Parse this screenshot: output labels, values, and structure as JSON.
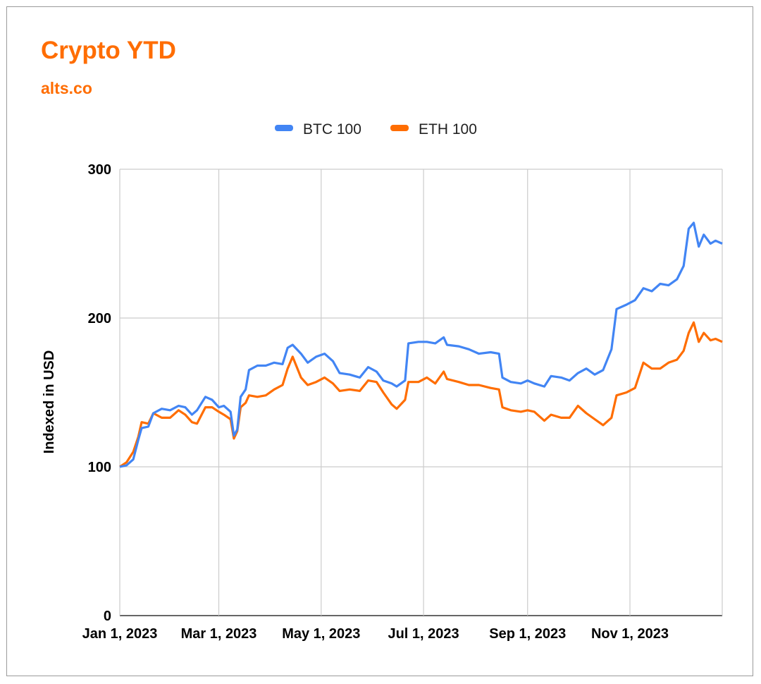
{
  "chart_data": {
    "type": "line",
    "title": "Crypto YTD",
    "subtitle": "alts.co",
    "xlabel": "",
    "ylabel": "Indexed in USD",
    "ylim": [
      0,
      300
    ],
    "yticks": [
      0,
      100,
      200,
      300
    ],
    "xlim": [
      "2023-01-01",
      "2023-12-26"
    ],
    "xticks": [
      {
        "date": "2023-01-01",
        "label": "Jan 1, 2023"
      },
      {
        "date": "2023-03-01",
        "label": "Mar 1, 2023"
      },
      {
        "date": "2023-05-01",
        "label": "May 1, 2023"
      },
      {
        "date": "2023-07-01",
        "label": "Jul 1, 2023"
      },
      {
        "date": "2023-09-01",
        "label": "Sep 1, 2023"
      },
      {
        "date": "2023-11-01",
        "label": "Nov 1, 2023"
      }
    ],
    "grid": true,
    "legend_position": "top",
    "series": [
      {
        "name": "BTC 100",
        "color": "#4285f4",
        "points": [
          [
            "2023-01-01",
            100
          ],
          [
            "2023-01-05",
            101
          ],
          [
            "2023-01-09",
            105
          ],
          [
            "2023-01-12",
            118
          ],
          [
            "2023-01-14",
            126
          ],
          [
            "2023-01-18",
            127
          ],
          [
            "2023-01-21",
            136
          ],
          [
            "2023-01-26",
            139
          ],
          [
            "2023-01-31",
            138
          ],
          [
            "2023-02-05",
            141
          ],
          [
            "2023-02-09",
            140
          ],
          [
            "2023-02-13",
            135
          ],
          [
            "2023-02-16",
            138
          ],
          [
            "2023-02-21",
            147
          ],
          [
            "2023-02-25",
            145
          ],
          [
            "2023-03-01",
            140
          ],
          [
            "2023-03-04",
            141
          ],
          [
            "2023-03-08",
            137
          ],
          [
            "2023-03-10",
            121
          ],
          [
            "2023-03-12",
            125
          ],
          [
            "2023-03-14",
            147
          ],
          [
            "2023-03-17",
            152
          ],
          [
            "2023-03-19",
            165
          ],
          [
            "2023-03-24",
            168
          ],
          [
            "2023-03-29",
            168
          ],
          [
            "2023-04-03",
            170
          ],
          [
            "2023-04-08",
            169
          ],
          [
            "2023-04-11",
            180
          ],
          [
            "2023-04-14",
            182
          ],
          [
            "2023-04-19",
            176
          ],
          [
            "2023-04-23",
            170
          ],
          [
            "2023-04-28",
            174
          ],
          [
            "2023-05-03",
            176
          ],
          [
            "2023-05-08",
            171
          ],
          [
            "2023-05-12",
            163
          ],
          [
            "2023-05-18",
            162
          ],
          [
            "2023-05-24",
            160
          ],
          [
            "2023-05-29",
            167
          ],
          [
            "2023-06-03",
            164
          ],
          [
            "2023-06-07",
            158
          ],
          [
            "2023-06-12",
            156
          ],
          [
            "2023-06-15",
            154
          ],
          [
            "2023-06-20",
            158
          ],
          [
            "2023-06-22",
            183
          ],
          [
            "2023-06-28",
            184
          ],
          [
            "2023-07-03",
            184
          ],
          [
            "2023-07-08",
            183
          ],
          [
            "2023-07-13",
            187
          ],
          [
            "2023-07-15",
            182
          ],
          [
            "2023-07-22",
            181
          ],
          [
            "2023-07-28",
            179
          ],
          [
            "2023-08-03",
            176
          ],
          [
            "2023-08-10",
            177
          ],
          [
            "2023-08-15",
            176
          ],
          [
            "2023-08-17",
            160
          ],
          [
            "2023-08-22",
            157
          ],
          [
            "2023-08-28",
            156
          ],
          [
            "2023-09-01",
            158
          ],
          [
            "2023-09-05",
            156
          ],
          [
            "2023-09-11",
            154
          ],
          [
            "2023-09-15",
            161
          ],
          [
            "2023-09-21",
            160
          ],
          [
            "2023-09-26",
            158
          ],
          [
            "2023-10-01",
            163
          ],
          [
            "2023-10-06",
            166
          ],
          [
            "2023-10-11",
            162
          ],
          [
            "2023-10-16",
            165
          ],
          [
            "2023-10-21",
            179
          ],
          [
            "2023-10-24",
            206
          ],
          [
            "2023-10-30",
            209
          ],
          [
            "2023-11-04",
            212
          ],
          [
            "2023-11-09",
            220
          ],
          [
            "2023-11-14",
            218
          ],
          [
            "2023-11-19",
            223
          ],
          [
            "2023-11-24",
            222
          ],
          [
            "2023-11-29",
            226
          ],
          [
            "2023-12-03",
            235
          ],
          [
            "2023-12-06",
            260
          ],
          [
            "2023-12-09",
            264
          ],
          [
            "2023-12-12",
            248
          ],
          [
            "2023-12-15",
            256
          ],
          [
            "2023-12-19",
            250
          ],
          [
            "2023-12-22",
            252
          ],
          [
            "2023-12-26",
            250
          ]
        ]
      },
      {
        "name": "ETH 100",
        "color": "#ff6d01",
        "points": [
          [
            "2023-01-01",
            100
          ],
          [
            "2023-01-05",
            103
          ],
          [
            "2023-01-09",
            110
          ],
          [
            "2023-01-12",
            120
          ],
          [
            "2023-01-14",
            130
          ],
          [
            "2023-01-18",
            129
          ],
          [
            "2023-01-21",
            136
          ],
          [
            "2023-01-26",
            133
          ],
          [
            "2023-01-31",
            133
          ],
          [
            "2023-02-05",
            138
          ],
          [
            "2023-02-09",
            135
          ],
          [
            "2023-02-13",
            130
          ],
          [
            "2023-02-16",
            129
          ],
          [
            "2023-02-21",
            140
          ],
          [
            "2023-02-25",
            140
          ],
          [
            "2023-03-01",
            137
          ],
          [
            "2023-03-04",
            135
          ],
          [
            "2023-03-08",
            132
          ],
          [
            "2023-03-10",
            119
          ],
          [
            "2023-03-12",
            124
          ],
          [
            "2023-03-14",
            140
          ],
          [
            "2023-03-17",
            143
          ],
          [
            "2023-03-19",
            148
          ],
          [
            "2023-03-24",
            147
          ],
          [
            "2023-03-29",
            148
          ],
          [
            "2023-04-03",
            152
          ],
          [
            "2023-04-08",
            155
          ],
          [
            "2023-04-11",
            166
          ],
          [
            "2023-04-14",
            174
          ],
          [
            "2023-04-19",
            160
          ],
          [
            "2023-04-23",
            155
          ],
          [
            "2023-04-28",
            157
          ],
          [
            "2023-05-03",
            160
          ],
          [
            "2023-05-08",
            156
          ],
          [
            "2023-05-12",
            151
          ],
          [
            "2023-05-18",
            152
          ],
          [
            "2023-05-24",
            151
          ],
          [
            "2023-05-29",
            158
          ],
          [
            "2023-06-03",
            157
          ],
          [
            "2023-06-07",
            150
          ],
          [
            "2023-06-12",
            142
          ],
          [
            "2023-06-15",
            139
          ],
          [
            "2023-06-20",
            145
          ],
          [
            "2023-06-22",
            157
          ],
          [
            "2023-06-28",
            157
          ],
          [
            "2023-07-03",
            160
          ],
          [
            "2023-07-08",
            156
          ],
          [
            "2023-07-13",
            164
          ],
          [
            "2023-07-15",
            159
          ],
          [
            "2023-07-22",
            157
          ],
          [
            "2023-07-28",
            155
          ],
          [
            "2023-08-03",
            155
          ],
          [
            "2023-08-10",
            153
          ],
          [
            "2023-08-15",
            152
          ],
          [
            "2023-08-17",
            140
          ],
          [
            "2023-08-22",
            138
          ],
          [
            "2023-08-28",
            137
          ],
          [
            "2023-09-01",
            138
          ],
          [
            "2023-09-05",
            137
          ],
          [
            "2023-09-11",
            131
          ],
          [
            "2023-09-15",
            135
          ],
          [
            "2023-09-21",
            133
          ],
          [
            "2023-09-26",
            133
          ],
          [
            "2023-10-01",
            141
          ],
          [
            "2023-10-06",
            136
          ],
          [
            "2023-10-11",
            132
          ],
          [
            "2023-10-16",
            128
          ],
          [
            "2023-10-21",
            133
          ],
          [
            "2023-10-24",
            148
          ],
          [
            "2023-10-30",
            150
          ],
          [
            "2023-11-04",
            153
          ],
          [
            "2023-11-09",
            170
          ],
          [
            "2023-11-14",
            166
          ],
          [
            "2023-11-19",
            166
          ],
          [
            "2023-11-24",
            170
          ],
          [
            "2023-11-29",
            172
          ],
          [
            "2023-12-03",
            178
          ],
          [
            "2023-12-06",
            190
          ],
          [
            "2023-12-09",
            197
          ],
          [
            "2023-12-12",
            184
          ],
          [
            "2023-12-15",
            190
          ],
          [
            "2023-12-19",
            185
          ],
          [
            "2023-12-22",
            186
          ],
          [
            "2023-12-26",
            184
          ]
        ]
      }
    ]
  }
}
